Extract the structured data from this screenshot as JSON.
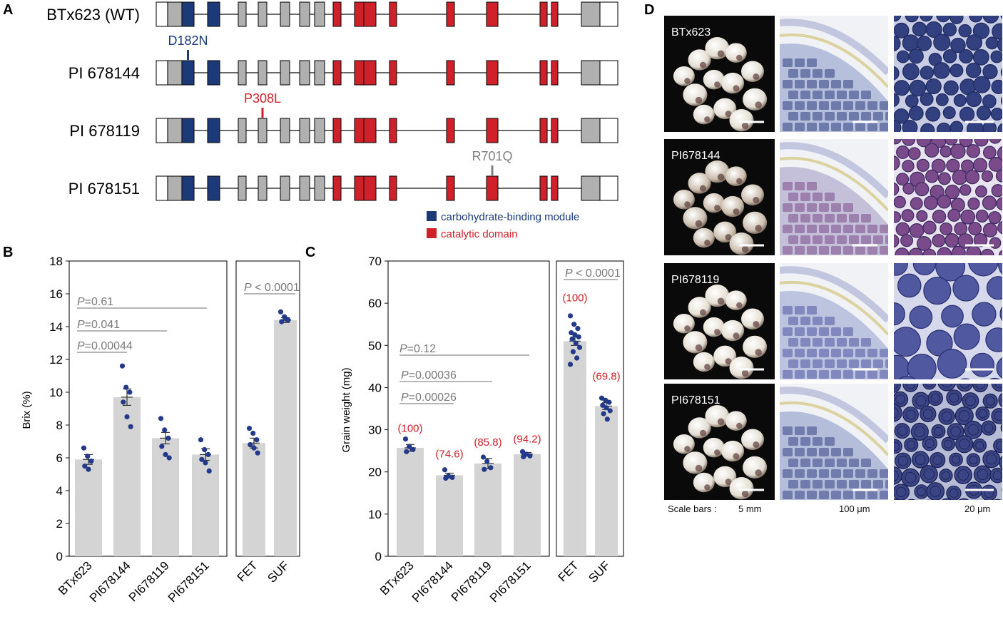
{
  "panel_a": {
    "letter": "A",
    "genes": [
      {
        "name": "BTx623 (WT)",
        "mutation": ""
      },
      {
        "name": "PI 678144",
        "mutation": "D182N",
        "mutation_exon": 2,
        "mutation_color": "#1c3a78"
      },
      {
        "name": "PI 678119",
        "mutation": "P308L",
        "mutation_exon": 5,
        "mutation_color": "#d0202a"
      },
      {
        "name": "PI 678151",
        "mutation": "R701Q",
        "mutation_exon": 14,
        "mutation_color": "#808080"
      }
    ],
    "exon_types": [
      "utr",
      "gray",
      "blue",
      "blue",
      "gray",
      "gray",
      "gray",
      "gray",
      "gray",
      "red",
      "red",
      "red",
      "red",
      "red",
      "red",
      "red",
      "red",
      "gray",
      "utr"
    ],
    "colors": {
      "blue": "#1c3a78",
      "red": "#d0202a",
      "gray": "#b0b0b0",
      "utr": "#ffffff"
    },
    "legend": [
      {
        "label": "carbohydrate-binding module",
        "color": "#1c3a78"
      },
      {
        "label": "catalytic domain",
        "color": "#d0202a"
      }
    ]
  },
  "panel_b": {
    "letter": "B",
    "ylabel": "Brix (%)",
    "ylim": [
      0,
      18
    ],
    "yticks": [
      0,
      2,
      4,
      6,
      8,
      10,
      12,
      14,
      16,
      18
    ],
    "p_values": [
      {
        "text_p": "P",
        "text_rest": "=0.61"
      },
      {
        "text_p": "P",
        "text_rest": "=0.041"
      },
      {
        "text_p": "P",
        "text_rest": "=0.00044"
      }
    ],
    "right_p": {
      "text_p": "P",
      "text_rest": " < 0.0001"
    }
  },
  "panel_c": {
    "letter": "C",
    "ylabel": "Grain weight (mg)",
    "ylim": [
      0,
      70
    ],
    "yticks": [
      0,
      10,
      20,
      30,
      40,
      50,
      60,
      70
    ],
    "p_values": [
      {
        "text_p": "P",
        "text_rest": "=0.12"
      },
      {
        "text_p": "P",
        "text_rest": "=0.00036"
      },
      {
        "text_p": "P",
        "text_rest": "=0.00026"
      }
    ],
    "right_p": {
      "text_p": "P",
      "text_rest": " < 0.0001"
    }
  },
  "chart_data": [
    {
      "type": "bar",
      "ylabel": "Brix (%)",
      "ylim": [
        0,
        18
      ],
      "categories": [
        "BTx623",
        "PI678144",
        "PI678119",
        "PI678151"
      ],
      "values": [
        5.9,
        9.7,
        7.2,
        6.2
      ],
      "errors": [
        0.3,
        0.5,
        0.35,
        0.35
      ],
      "points": [
        [
          6.6,
          6.1,
          5.8,
          5.5,
          5.3
        ],
        [
          11.6,
          10.3,
          10.0,
          9.4,
          8.5,
          7.9
        ],
        [
          8.4,
          7.7,
          7.2,
          6.7,
          6.2,
          6.0
        ],
        [
          7.1,
          6.5,
          6.2,
          5.9,
          5.7,
          5.2
        ]
      ]
    },
    {
      "type": "bar",
      "ylabel": "Brix (%)",
      "ylim": [
        0,
        18
      ],
      "categories": [
        "FET",
        "SUF"
      ],
      "values": [
        6.9,
        14.4
      ],
      "errors": [
        0.3,
        0.15
      ],
      "points": [
        [
          7.8,
          7.5,
          7.1,
          6.8,
          6.6,
          6.3
        ],
        [
          14.9,
          14.6,
          14.4,
          14.3,
          14.5
        ]
      ]
    },
    {
      "type": "bar",
      "ylabel": "Grain weight (mg)",
      "ylim": [
        0,
        70
      ],
      "categories": [
        "BTx623",
        "PI678144",
        "PI678119",
        "PI678151"
      ],
      "values": [
        25.7,
        19.2,
        22.0,
        24.2
      ],
      "errors": [
        0.8,
        0.5,
        1.2,
        0.4
      ],
      "labels": [
        "(100)",
        "(74.6)",
        "(85.8)",
        "(94.2)"
      ],
      "points": [
        [
          27.8,
          26.0,
          25.3,
          24.8
        ],
        [
          20.5,
          19.0,
          18.7,
          18.5
        ],
        [
          23.5,
          22.5,
          21.0,
          20.6
        ],
        [
          24.8,
          24.2,
          23.8,
          23.6
        ]
      ]
    },
    {
      "type": "bar",
      "ylabel": "Grain weight (mg)",
      "ylim": [
        0,
        70
      ],
      "categories": [
        "FET",
        "SUF"
      ],
      "values": [
        51.0,
        35.6
      ],
      "errors": [
        1.0,
        0.8
      ],
      "labels": [
        "(100)",
        "(69.8)"
      ],
      "points": [
        [
          57.0,
          55.0,
          54.0,
          53.0,
          52.5,
          52.0,
          51.5,
          50.5,
          49.5,
          48.5,
          47.0,
          45.5
        ],
        [
          37.5,
          37.0,
          36.5,
          35.8,
          35.2,
          34.5,
          33.8,
          32.5
        ]
      ]
    }
  ],
  "panel_d": {
    "letter": "D",
    "rows": [
      {
        "label": "BTx623",
        "kernel": "#e3ddd2",
        "tint": "#b6c0dd",
        "cell": "#33407f",
        "cellEdge": "#1e2a60",
        "gap": "#c9cde4"
      },
      {
        "label": "PI678144",
        "kernel": "#c9bcac",
        "tint": "#c4c0da",
        "cell": "#7b4a8a",
        "cellEdge": "#3a2a60",
        "gap": "#e8e3ee"
      },
      {
        "label": "PI678119",
        "kernel": "#e6dfd3",
        "tint": "#bcc4df",
        "cell": "#5058a0",
        "cellEdge": "#2a2f70",
        "gap": "#d6d9ec"
      },
      {
        "label": "PI678151",
        "kernel": "#e2dcd1",
        "tint": "#b4bedb",
        "cell": "#3b4585",
        "cellEdge": "#1a2050",
        "gap": "#b6bbd6"
      }
    ],
    "scale_prefix": "Scale bars :",
    "scale_values": [
      "5 mm",
      "100 μm",
      "20 μm"
    ]
  }
}
